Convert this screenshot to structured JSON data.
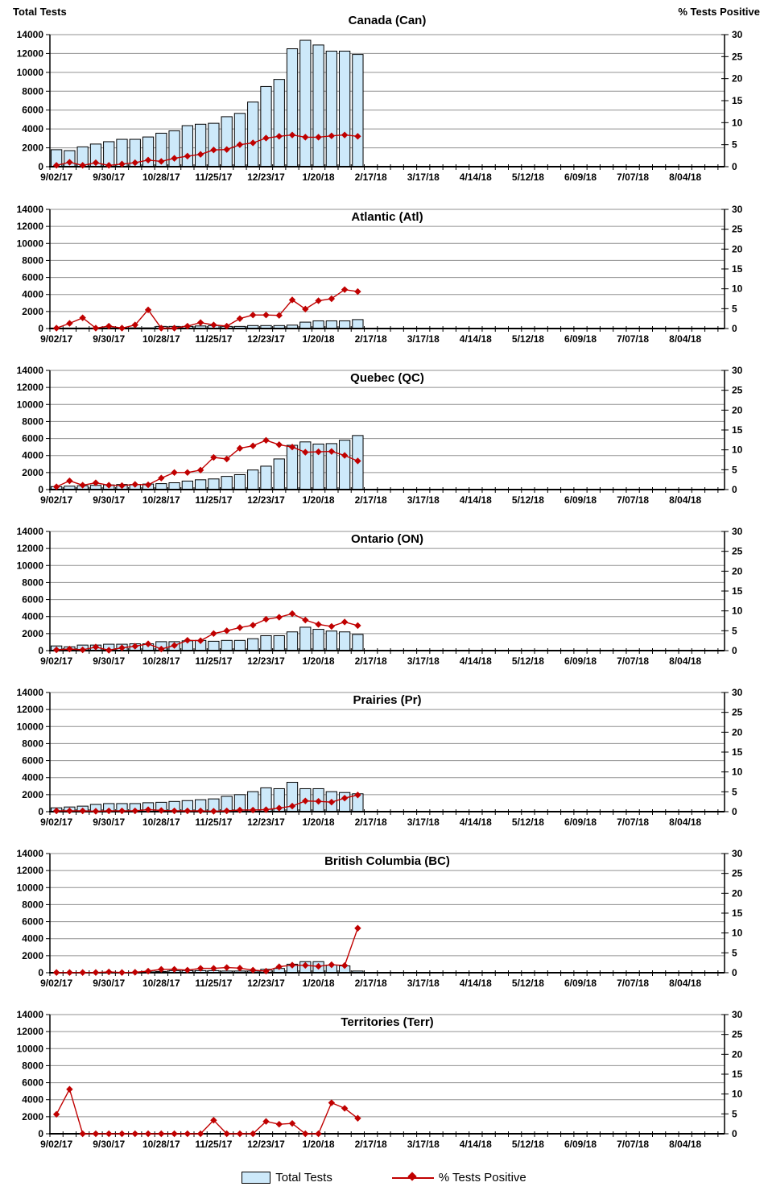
{
  "header": {
    "left_axis_title": "Total Tests",
    "right_axis_title": "% Tests Positive"
  },
  "legend": {
    "total_tests": "Total Tests",
    "pct_positive": "% Tests Positive"
  },
  "colors": {
    "bar_fill": "#CDE9FA",
    "bar_stroke": "#000000",
    "line": "#C00000",
    "grid": "#909090",
    "axis": "#000000"
  },
  "chart_data": {
    "type": "bar+line",
    "x_tick_labels": [
      "9/02/17",
      "9/30/17",
      "10/28/17",
      "11/25/17",
      "12/23/17",
      "1/20/18",
      "2/17/18",
      "3/17/18",
      "4/14/18",
      "5/12/18",
      "6/09/18",
      "7/07/18",
      "8/04/18"
    ],
    "weeks_per_tick": 4,
    "weeks_shown": 51.5,
    "y_left": {
      "label": "Total Tests",
      "min": 0,
      "max": 14000,
      "step": 2000
    },
    "y_right": {
      "label": "% Tests Positive",
      "min": 0,
      "max": 30,
      "step": 5
    },
    "legend_entries": [
      "Total Tests",
      "% Tests Positive"
    ],
    "charts": [
      {
        "title": "Canada (Can)",
        "total_tests": [
          1800,
          1700,
          2100,
          2400,
          2650,
          2900,
          2900,
          3150,
          3550,
          3800,
          4350,
          4500,
          4600,
          5300,
          5650,
          6850,
          8500,
          9250,
          12500,
          13400,
          12900,
          12250,
          12250,
          11900
        ],
        "pct_positive": [
          0.3,
          1.0,
          0.3,
          0.9,
          0.3,
          0.6,
          0.9,
          1.5,
          1.2,
          1.9,
          2.4,
          2.8,
          3.8,
          3.9,
          5.0,
          5.4,
          6.5,
          6.9,
          7.2,
          6.7,
          6.7,
          7.0,
          7.2,
          6.9
        ]
      },
      {
        "title": "Atlantic (Atl)",
        "total_tests": [
          60,
          60,
          60,
          60,
          70,
          70,
          80,
          80,
          250,
          250,
          250,
          300,
          350,
          250,
          250,
          350,
          350,
          350,
          400,
          750,
          900,
          900,
          900,
          1050
        ],
        "pct_positive": [
          0.1,
          1.3,
          2.7,
          0.1,
          0.6,
          0.1,
          0.9,
          4.7,
          0.1,
          0.1,
          0.6,
          1.5,
          0.9,
          0.6,
          2.5,
          3.4,
          3.4,
          3.3,
          7.2,
          4.9,
          7.0,
          7.5,
          9.8,
          9.3
        ]
      },
      {
        "title": "Quebec (QC)",
        "total_tests": [
          350,
          400,
          450,
          500,
          550,
          600,
          600,
          650,
          700,
          800,
          1000,
          1150,
          1250,
          1550,
          1750,
          2300,
          2750,
          3600,
          5200,
          5600,
          5350,
          5400,
          5800,
          6350
        ],
        "pct_positive": [
          0.7,
          2.2,
          1.1,
          1.7,
          1.1,
          1.0,
          1.3,
          1.2,
          2.9,
          4.3,
          4.3,
          4.9,
          8.1,
          7.7,
          10.4,
          11.0,
          12.4,
          11.3,
          10.7,
          9.4,
          9.5,
          9.6,
          8.6,
          7.2
        ]
      },
      {
        "title": "Ontario (ON)",
        "total_tests": [
          550,
          450,
          650,
          650,
          750,
          750,
          800,
          800,
          1050,
          1050,
          1150,
          1200,
          1100,
          1200,
          1200,
          1400,
          1750,
          1750,
          2200,
          2750,
          2500,
          2300,
          2200,
          1900
        ],
        "pct_positive": [
          0.2,
          0.4,
          0.2,
          0.9,
          0.1,
          0.7,
          1.1,
          1.7,
          0.4,
          1.3,
          2.6,
          2.5,
          4.3,
          5.0,
          5.8,
          6.4,
          7.9,
          8.4,
          9.3,
          7.7,
          6.6,
          6.1,
          7.2,
          6.3
        ]
      },
      {
        "title": "Prairies (Pr)",
        "total_tests": [
          450,
          550,
          650,
          850,
          950,
          950,
          950,
          1050,
          1100,
          1200,
          1300,
          1400,
          1500,
          1800,
          2000,
          2350,
          2800,
          2700,
          3450,
          2700,
          2700,
          2350,
          2250,
          2100
        ],
        "pct_positive": [
          0.2,
          0.2,
          0.2,
          0.1,
          0.2,
          0.2,
          0.2,
          0.5,
          0.3,
          0.2,
          0.2,
          0.2,
          0.1,
          0.2,
          0.4,
          0.4,
          0.5,
          0.9,
          1.4,
          2.7,
          2.6,
          2.4,
          3.4,
          4.2
        ]
      },
      {
        "title": "British Columbia (BC)",
        "total_tests": [
          10,
          10,
          10,
          10,
          20,
          20,
          30,
          100,
          150,
          250,
          250,
          250,
          250,
          200,
          200,
          200,
          400,
          500,
          1000,
          1300,
          1300,
          900,
          800,
          200
        ],
        "pct_positive": [
          0.05,
          0.05,
          0.05,
          0.05,
          0.2,
          0.05,
          0.1,
          0.4,
          0.85,
          0.85,
          0.65,
          1.1,
          1.1,
          1.3,
          1.15,
          0.65,
          0.4,
          1.5,
          1.9,
          1.85,
          1.6,
          2.0,
          1.8,
          11.2
        ]
      },
      {
        "title": "Territories (Terr)",
        "total_tests": [
          40,
          40,
          20,
          20,
          20,
          20,
          20,
          20,
          20,
          20,
          20,
          20,
          40,
          20,
          20,
          20,
          40,
          40,
          40,
          20,
          20,
          40,
          40,
          40
        ],
        "pct_positive": [
          4.9,
          11.2,
          0,
          0,
          0,
          0,
          0,
          0,
          0,
          0,
          0,
          0,
          3.4,
          0,
          0,
          0,
          3.1,
          2.4,
          2.6,
          0,
          0,
          7.8,
          6.4,
          3.9
        ]
      }
    ]
  }
}
